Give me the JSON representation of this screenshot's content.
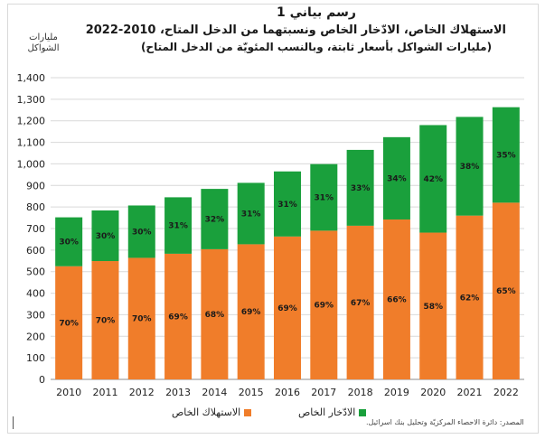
{
  "chart_data": {
    "type": "bar",
    "stacked": true,
    "title": "رسم بياني 1",
    "subtitle": "الاستهلاك الخاص، الادّخار الخاص ونسبتهما من الدخل المتاح، 2010-2022",
    "subtitle2": "(مليارات الشواكل بأسعار ثابتة، وبالنسب المئويّة من الدخل المتاح)",
    "ylabel": "مليارات الشواكل",
    "ylim": [
      0,
      1400
    ],
    "yticks": [
      "0",
      "100",
      "200",
      "300",
      "400",
      "500",
      "600",
      "700",
      "800",
      "900",
      "1,000",
      "1,100",
      "1,200",
      "1,300",
      "1,400"
    ],
    "categories": [
      "2010",
      "2011",
      "2012",
      "2013",
      "2014",
      "2015",
      "2016",
      "2017",
      "2018",
      "2019",
      "2020",
      "2021",
      "2022"
    ],
    "grid": true,
    "legend_position": "bottom",
    "series": [
      {
        "name": "الاستهلاك الخاص",
        "color": "#f07d2a",
        "values": [
          525,
          549,
          564,
          583,
          604,
          627,
          663,
          690,
          713,
          742,
          681,
          760,
          820
        ],
        "labels": [
          "70%",
          "70%",
          "70%",
          "69%",
          "68%",
          "69%",
          "69%",
          "69%",
          "67%",
          "66%",
          "58%",
          "62%",
          "65%"
        ]
      },
      {
        "name": "الادّخار الخاص",
        "color": "#1aa03c",
        "values": [
          227,
          235,
          243,
          262,
          280,
          285,
          302,
          309,
          352,
          382,
          499,
          458,
          443
        ],
        "labels": [
          "30%",
          "30%",
          "30%",
          "31%",
          "32%",
          "31%",
          "31%",
          "31%",
          "33%",
          "34%",
          "42%",
          "38%",
          "35%"
        ]
      }
    ]
  },
  "source": "المصدر: دائرة الاحصاء المركزيّة وتحليل بنك اسرائيل."
}
